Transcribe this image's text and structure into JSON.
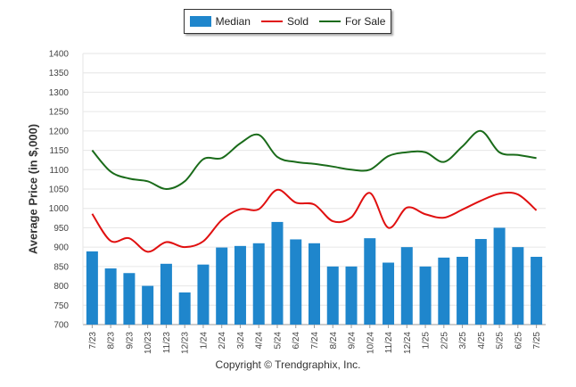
{
  "legend": {
    "median": "Median",
    "sold": "Sold",
    "for_sale": "For Sale"
  },
  "colors": {
    "median": "#1f86cc",
    "sold": "#e01010",
    "for_sale": "#1a6b1a",
    "grid": "#e6e6e6",
    "axis": "#9a9a9a"
  },
  "footer": {
    "copyright": "Copyright © Trendgraphix, Inc."
  },
  "chart_data": {
    "type": "bar",
    "ylabel": "Average Price (in $,000)",
    "ylim": [
      700,
      1400
    ],
    "yticks": [
      700,
      750,
      800,
      850,
      900,
      950,
      1000,
      1050,
      1100,
      1150,
      1200,
      1250,
      1300,
      1350,
      1400
    ],
    "grid": true,
    "legend_position": "top-center",
    "categories": [
      "7/23",
      "8/23",
      "9/23",
      "10/23",
      "11/23",
      "12/23",
      "1/24",
      "2/24",
      "3/24",
      "4/24",
      "5/24",
      "6/24",
      "7/24",
      "8/24",
      "9/24",
      "10/24",
      "11/24",
      "12/24",
      "1/25",
      "2/25",
      "3/25",
      "4/25",
      "5/25",
      "6/25",
      "7/25"
    ],
    "series": [
      {
        "name": "Median",
        "kind": "bar",
        "values": [
          889,
          845,
          833,
          800,
          857,
          783,
          855,
          899,
          903,
          910,
          965,
          920,
          910,
          850,
          850,
          923,
          860,
          900,
          850,
          873,
          875,
          921,
          950,
          900,
          875
        ]
      },
      {
        "name": "Sold",
        "kind": "line",
        "values": [
          986,
          916,
          923,
          888,
          913,
          900,
          915,
          970,
          998,
          998,
          1048,
          1015,
          1010,
          967,
          977,
          1040,
          950,
          1002,
          985,
          976,
          997,
          1020,
          1038,
          1036,
          995
        ]
      },
      {
        "name": "For Sale",
        "kind": "line",
        "values": [
          1150,
          1095,
          1077,
          1070,
          1050,
          1070,
          1127,
          1130,
          1168,
          1190,
          1133,
          1120,
          1115,
          1108,
          1100,
          1100,
          1135,
          1145,
          1145,
          1120,
          1160,
          1200,
          1145,
          1138,
          1130
        ]
      }
    ]
  }
}
